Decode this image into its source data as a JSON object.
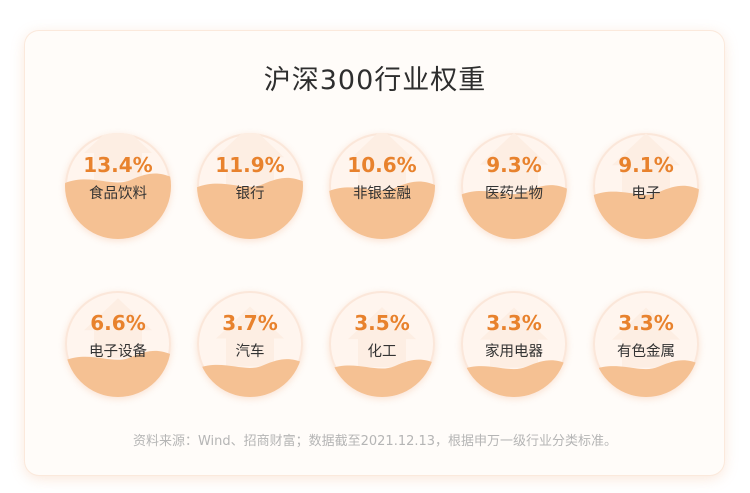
{
  "chart_data": {
    "type": "table",
    "title": "沪深300行业权重",
    "categories": [
      "食品饮料",
      "银行",
      "非银金融",
      "医药生物",
      "电子",
      "电子设备",
      "汽车",
      "化工",
      "家用电器",
      "有色金属"
    ],
    "values": [
      13.4,
      11.9,
      10.6,
      9.3,
      9.1,
      6.6,
      3.7,
      3.5,
      3.3,
      3.3
    ],
    "labels": [
      "13.4%",
      "11.9%",
      "10.6%",
      "9.3%",
      "9.1%",
      "6.6%",
      "3.7%",
      "3.5%",
      "3.3%",
      "3.3%"
    ],
    "unit": "%"
  },
  "footer": {
    "source": "资料来源：Wind、招商财富；数据截至2021.12.13，根据申万一级行业分类标准。"
  },
  "colors": {
    "accent": "#e8822d",
    "fill": "#f5c193",
    "bubble_bg": "#fff5ee"
  }
}
